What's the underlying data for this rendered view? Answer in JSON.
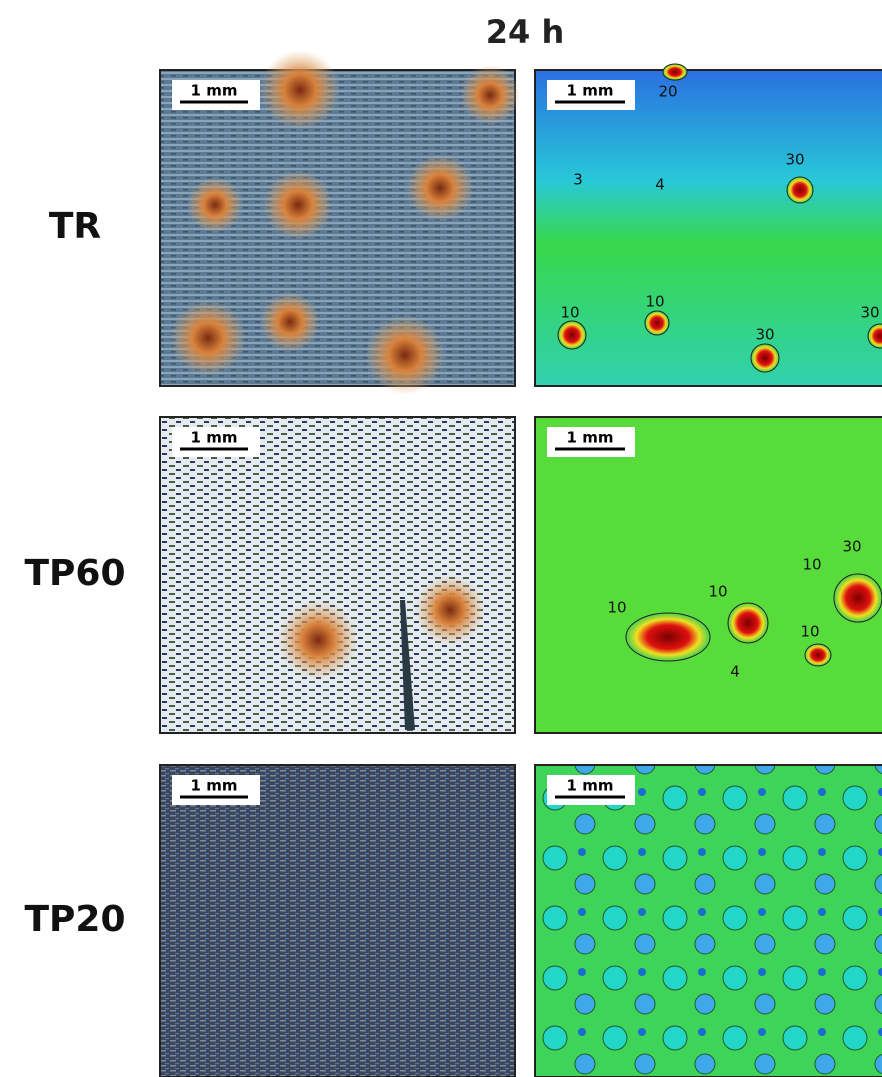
{
  "title": "24 h",
  "rows": [
    {
      "label": "TR",
      "optical": {
        "scale_bar": "1 mm"
      },
      "map": {
        "scale_bar": "1 mm",
        "contour_labels": [
          "20",
          "3",
          "4",
          "30",
          "10",
          "10",
          "30",
          "30"
        ]
      }
    },
    {
      "label": "TP60",
      "optical": {
        "scale_bar": "1 mm"
      },
      "map": {
        "scale_bar": "1 mm",
        "contour_labels": [
          "10",
          "10",
          "10",
          "4",
          "10",
          "30"
        ]
      }
    },
    {
      "label": "TP20",
      "optical": {
        "scale_bar": "1 mm"
      },
      "map": {
        "scale_bar": "1 mm",
        "contour_labels": []
      }
    }
  ]
}
